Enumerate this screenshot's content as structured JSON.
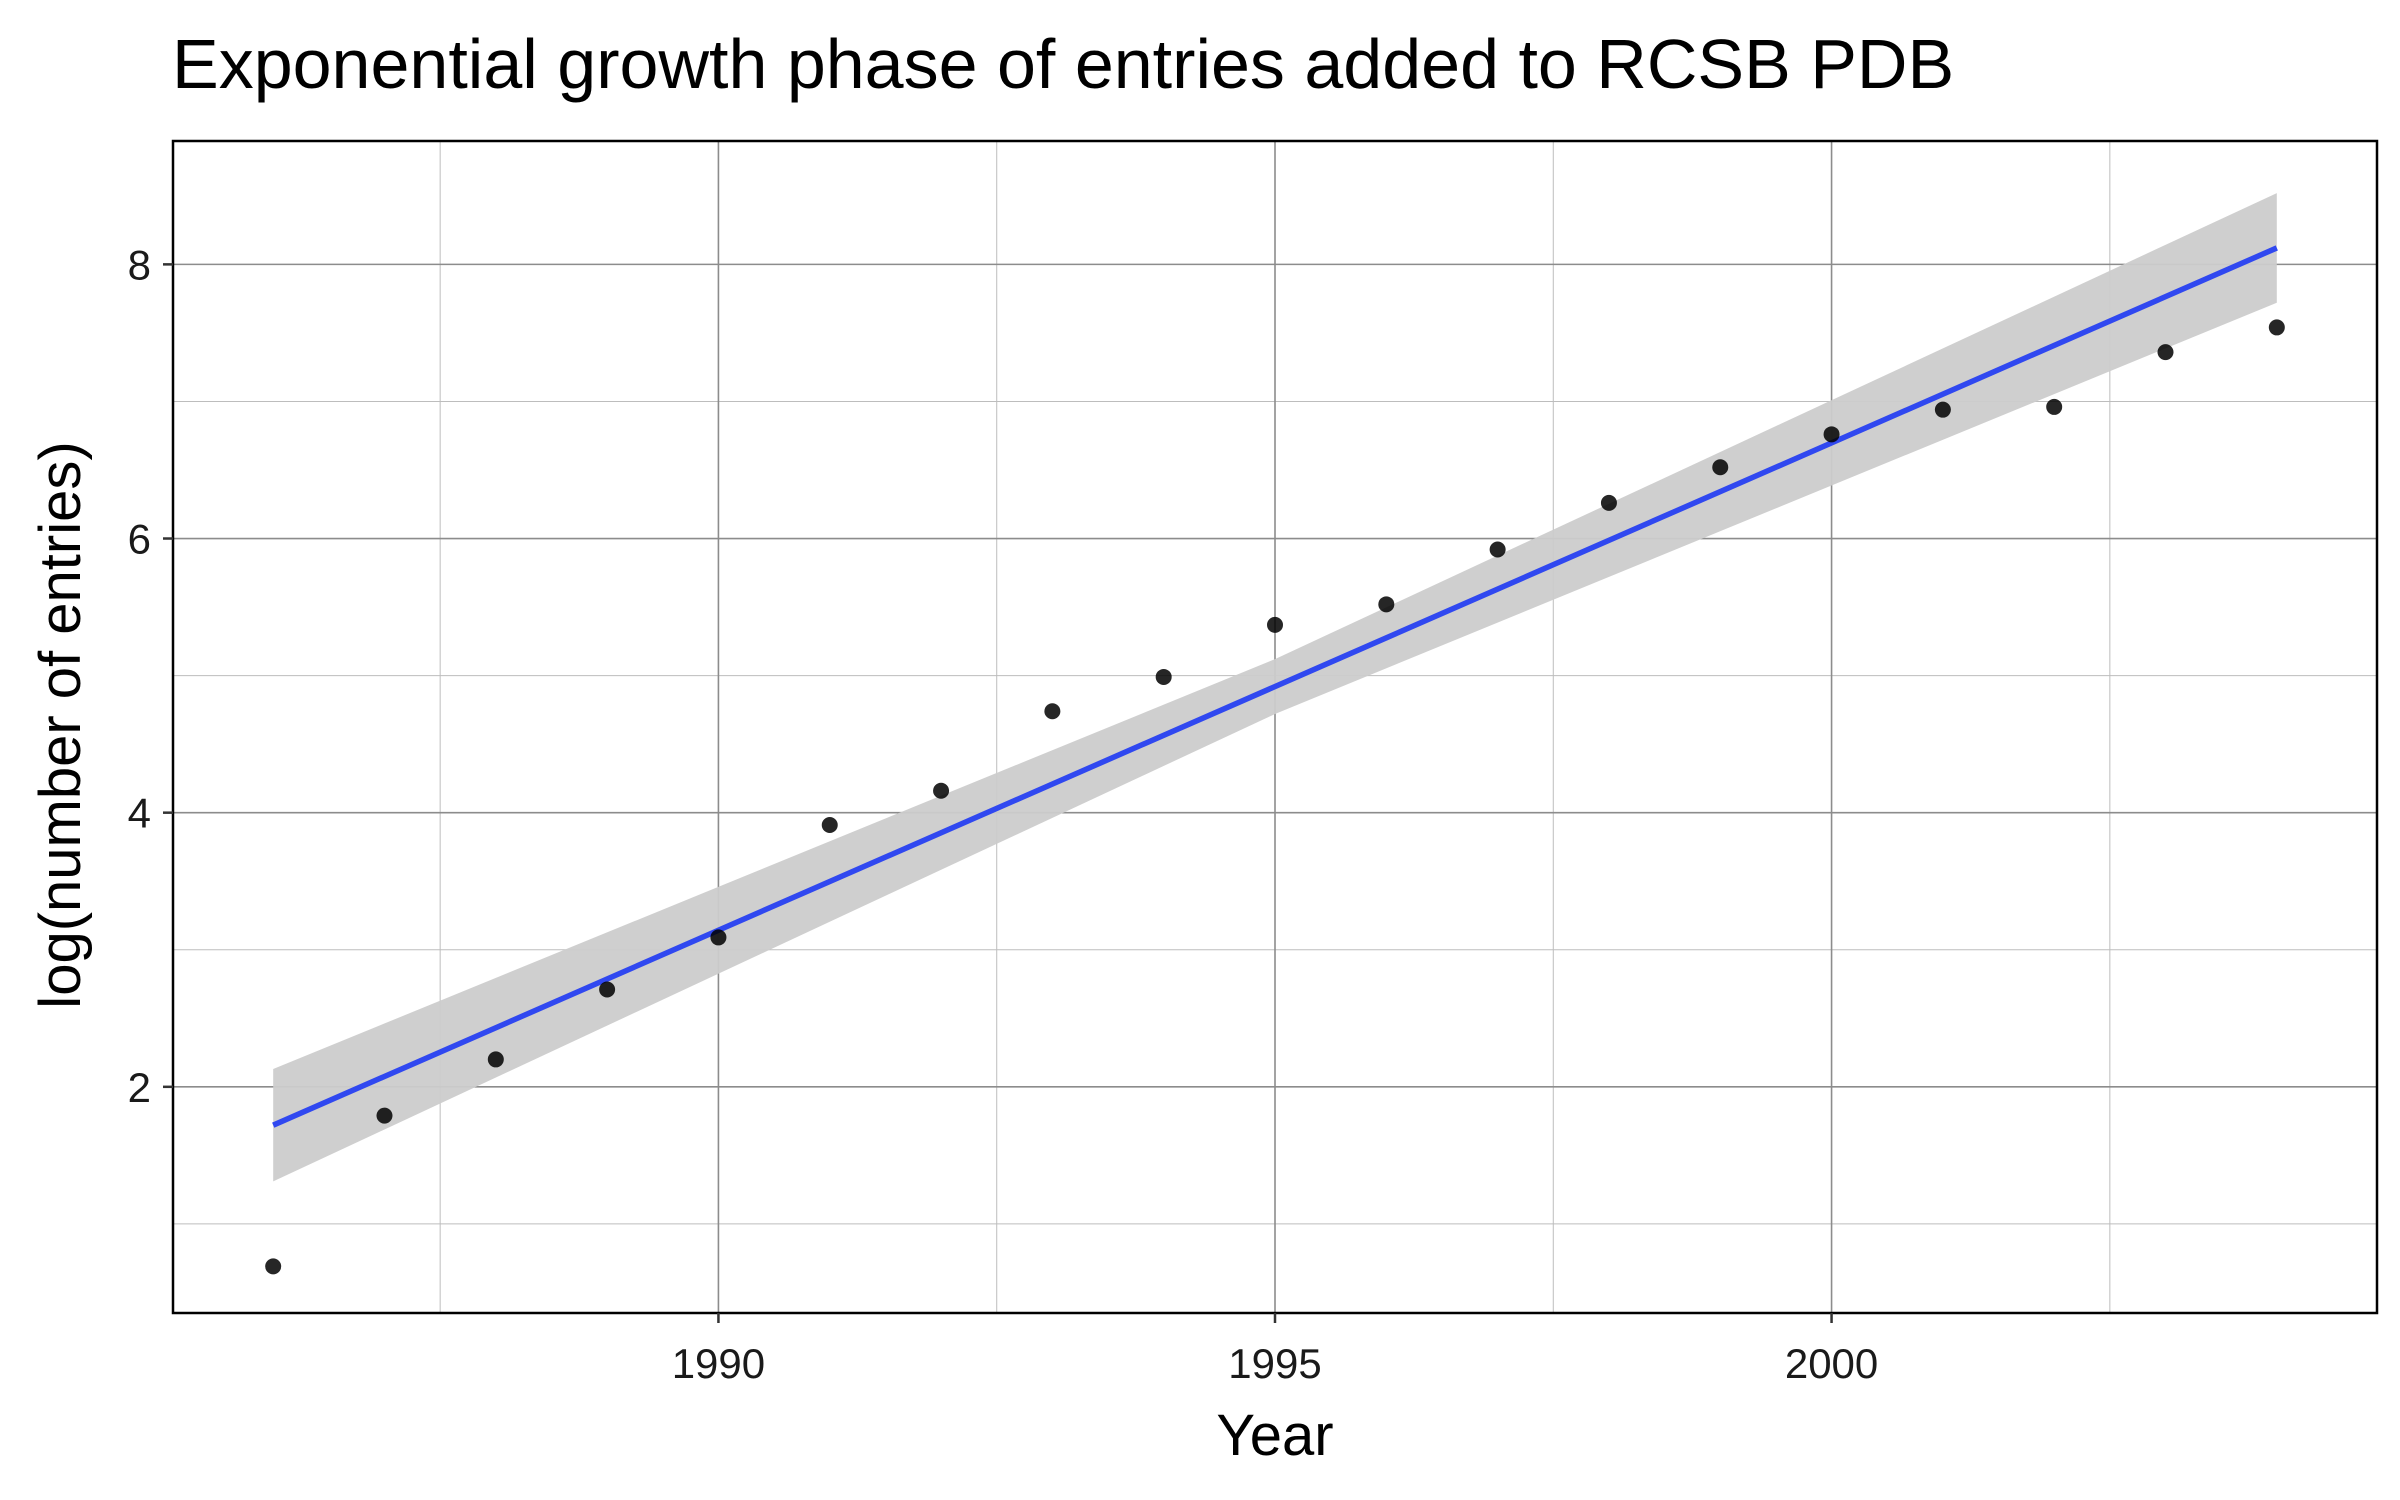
{
  "chart_data": {
    "type": "scatter",
    "title": "Exponential growth phase of entries added to RCSB PDB",
    "xlabel": "Year",
    "ylabel": "log(number of entries)",
    "xlim": [
      1985.1,
      2004.9
    ],
    "ylim": [
      0.35,
      8.9
    ],
    "x_ticks": [
      1990,
      1995,
      2000
    ],
    "y_ticks": [
      2,
      4,
      6,
      8
    ],
    "x_minor": [
      1987.5,
      1992.5,
      1997.5,
      2002.5
    ],
    "y_minor": [
      1,
      3,
      5,
      7
    ],
    "grid": true,
    "points": {
      "x": [
        1986,
        1987,
        1988,
        1989,
        1990,
        1991,
        1992,
        1993,
        1994,
        1995,
        1996,
        1997,
        1998,
        1999,
        2000,
        2001,
        2002,
        2003,
        2004
      ],
      "y": [
        0.69,
        1.79,
        2.2,
        2.71,
        3.09,
        3.91,
        4.16,
        4.74,
        4.99,
        5.37,
        5.52,
        5.92,
        6.26,
        6.52,
        6.76,
        6.94,
        6.96,
        7.36,
        7.54
      ]
    },
    "fit": {
      "x": [
        1986,
        2004
      ],
      "y": [
        1.72,
        8.12
      ],
      "ci_lower": [
        1.31,
        7.72
      ],
      "ci_upper": [
        2.13,
        8.52
      ],
      "ci_mid": [
        1995,
        4.92,
        0.2
      ],
      "color": "#3048F0",
      "ci_color": "#CCCCCC"
    },
    "point_color": "#000000"
  }
}
